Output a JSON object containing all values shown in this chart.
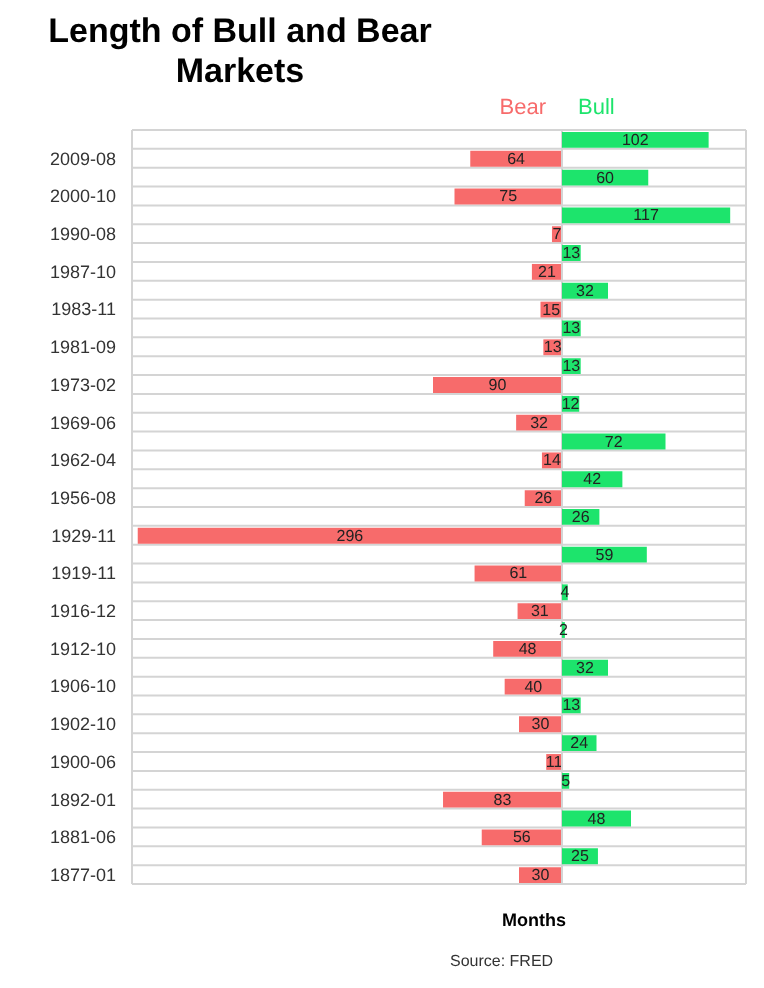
{
  "chart_data": [
    {
      "type": "bar",
      "orientation": "horizontal",
      "title": "Length of Bull and Bear Markets",
      "annotations": [
        "Source: FRED"
      ],
      "categories": [
        null,
        "2009-08",
        null,
        "2000-10",
        null,
        "1990-08",
        null,
        "1987-10",
        null,
        "1983-11",
        null,
        "1981-09",
        null,
        "1973-02",
        null,
        "1969-06",
        null,
        "1962-04",
        null,
        "1956-08",
        null,
        "1929-11",
        null,
        "1919-11",
        null,
        "1916-12",
        null,
        "1912-10",
        null,
        "1906-10",
        null,
        "1902-10",
        null,
        "1900-06",
        null,
        "1892-01",
        null,
        "1881-06",
        null,
        "1877-01"
      ],
      "series": [
        {
          "name": "Bear",
          "color": "#f76b6b",
          "values": [
            null,
            64,
            null,
            75,
            null,
            7,
            null,
            21,
            null,
            15,
            null,
            13,
            null,
            90,
            null,
            32,
            null,
            14,
            null,
            26,
            null,
            296,
            null,
            61,
            null,
            31,
            null,
            48,
            null,
            40,
            null,
            30,
            null,
            11,
            null,
            83,
            null,
            56,
            null,
            30
          ]
        }
      ],
      "data_labels": true,
      "xlim": [
        300,
        0
      ],
      "tick_labels": "y",
      "grid": true,
      "legend": "top right"
    },
    {
      "type": "bar",
      "orientation": "horizontal",
      "xlabel": "Months",
      "categories": [
        null,
        "2009-08",
        null,
        "2000-10",
        null,
        "1990-08",
        null,
        "1987-10",
        null,
        "1983-11",
        null,
        "1981-09",
        null,
        "1973-02",
        null,
        "1969-06",
        null,
        "1962-04",
        null,
        "1956-08",
        null,
        "1929-11",
        null,
        "1919-11",
        null,
        "1916-12",
        null,
        "1912-10",
        null,
        "1906-10",
        null,
        "1902-10",
        null,
        "1900-06",
        null,
        "1892-01",
        null,
        "1881-06",
        null,
        "1877-01"
      ],
      "series": [
        {
          "name": "Bull",
          "color": "#1de46c",
          "values": [
            102,
            null,
            60,
            null,
            117,
            null,
            13,
            null,
            32,
            null,
            13,
            null,
            13,
            null,
            12,
            null,
            72,
            null,
            42,
            null,
            26,
            null,
            59,
            null,
            4,
            null,
            2,
            null,
            32,
            null,
            13,
            null,
            24,
            null,
            5,
            null,
            48,
            null,
            25,
            null
          ]
        }
      ],
      "data_labels": true,
      "xlim": [
        0,
        128
      ],
      "tick_labels": false,
      "grid": true,
      "legend": "top left"
    }
  ]
}
